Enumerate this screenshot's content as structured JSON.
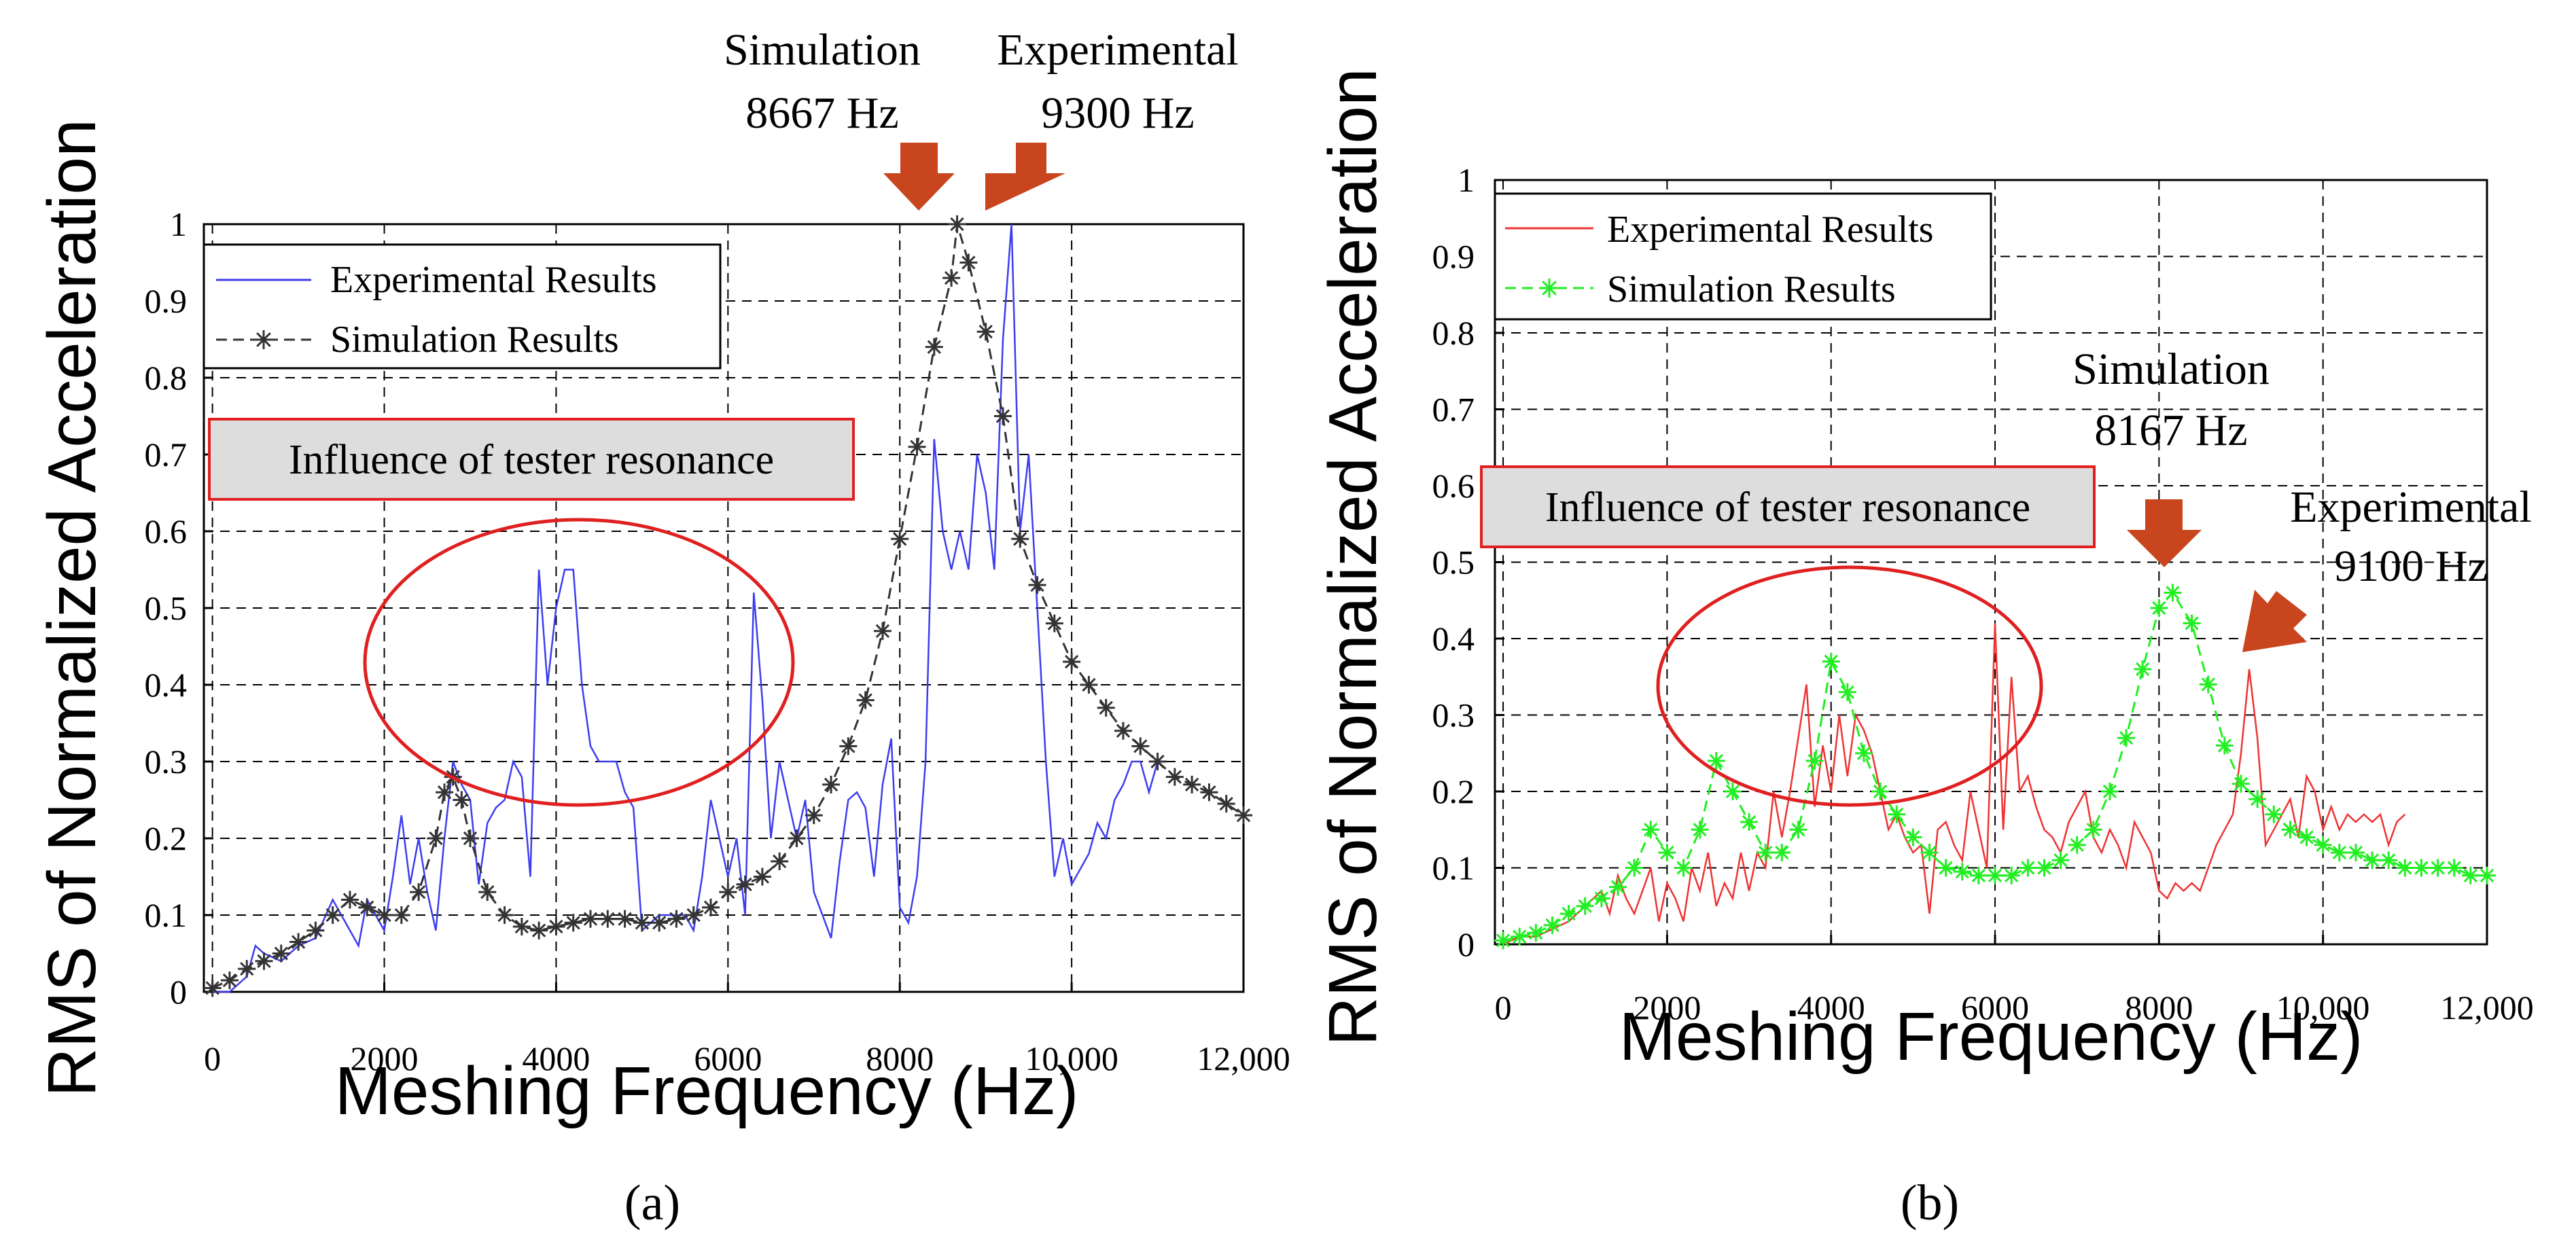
{
  "colors": {
    "exp_a": "#3d3df0",
    "sim_a": "#333333",
    "exp_b": "#ee3333",
    "sim_b": "#22ee22",
    "arrow": "#c8451e",
    "ellipse": "#e02020",
    "box_text": "#e02020",
    "box_border": "#e02020",
    "box_fill": "#dddddd"
  },
  "chart_data": [
    {
      "type": "line",
      "panel": "(a)",
      "xlabel": "Meshing Frequency (Hz)",
      "ylabel": "RMS of Normalized Acceleration",
      "xlim": [
        -100,
        12000
      ],
      "ylim": [
        0,
        1
      ],
      "xticks": [
        0,
        2000,
        4000,
        6000,
        8000,
        10000,
        12000
      ],
      "xtick_labels": [
        "0",
        "2000",
        "4000",
        "6000",
        "8000",
        "10,000",
        "12,000"
      ],
      "yticks": [
        0,
        0.1,
        0.2,
        0.3,
        0.4,
        0.5,
        0.6,
        0.7,
        0.8,
        0.9,
        1
      ],
      "ytick_labels": [
        "0",
        "0.1",
        "0.2",
        "0.3",
        "0.4",
        "0.5",
        "0.6",
        "0.7",
        "0.8",
        "0.9",
        "1"
      ],
      "grid": true,
      "legend": {
        "position": "top-left",
        "entries": [
          "Experimental Results",
          "Simulation Results"
        ]
      },
      "box_text": "Influence of tester resonance",
      "annotations": [
        {
          "line1": "Simulation",
          "line2": "8667 Hz",
          "x": 8667
        },
        {
          "line1": "Experimental",
          "line2": "9300 Hz",
          "x": 9300
        }
      ],
      "series": [
        {
          "name": "Experimental Results",
          "x": [
            0,
            200,
            400,
            500,
            600,
            800,
            1000,
            1200,
            1400,
            1500,
            1600,
            1700,
            1800,
            1900,
            2000,
            2100,
            2200,
            2300,
            2400,
            2500,
            2600,
            2700,
            2800,
            2900,
            3000,
            3100,
            3200,
            3300,
            3400,
            3500,
            3600,
            3700,
            3800,
            3900,
            4000,
            4100,
            4200,
            4300,
            4400,
            4500,
            4600,
            4700,
            4800,
            4900,
            5000,
            5200,
            5400,
            5500,
            5600,
            5700,
            5800,
            5900,
            6000,
            6100,
            6200,
            6300,
            6400,
            6500,
            6600,
            6700,
            6800,
            6900,
            7000,
            7100,
            7200,
            7300,
            7400,
            7500,
            7600,
            7700,
            7800,
            7900,
            8000,
            8100,
            8200,
            8300,
            8400,
            8500,
            8600,
            8700,
            8800,
            8900,
            9000,
            9100,
            9200,
            9300,
            9400,
            9500,
            9600,
            9700,
            9800,
            9900,
            10000,
            10100,
            10200,
            10300,
            10400,
            10500,
            10600,
            10700,
            10800,
            10900,
            11000
          ],
          "values": [
            0,
            0,
            0.02,
            0.06,
            0.05,
            0.04,
            0.06,
            0.07,
            0.12,
            0.1,
            0.08,
            0.06,
            0.12,
            0.1,
            0.08,
            0.15,
            0.23,
            0.14,
            0.2,
            0.13,
            0.08,
            0.2,
            0.3,
            0.27,
            0.25,
            0.14,
            0.22,
            0.24,
            0.25,
            0.3,
            0.28,
            0.15,
            0.55,
            0.4,
            0.5,
            0.55,
            0.55,
            0.4,
            0.32,
            0.3,
            0.3,
            0.3,
            0.26,
            0.24,
            0.08,
            0.1,
            0.1,
            0.1,
            0.08,
            0.15,
            0.25,
            0.2,
            0.15,
            0.2,
            0.1,
            0.52,
            0.38,
            0.2,
            0.3,
            0.25,
            0.2,
            0.25,
            0.13,
            0.1,
            0.07,
            0.17,
            0.25,
            0.26,
            0.24,
            0.15,
            0.27,
            0.33,
            0.11,
            0.09,
            0.15,
            0.3,
            0.72,
            0.6,
            0.55,
            0.6,
            0.55,
            0.7,
            0.65,
            0.55,
            0.85,
            1,
            0.6,
            0.7,
            0.5,
            0.3,
            0.15,
            0.2,
            0.14,
            0.16,
            0.18,
            0.22,
            0.2,
            0.25,
            0.27,
            0.3,
            0.3,
            0.26,
            0.3
          ]
        },
        {
          "name": "Simulation Results",
          "x": [
            0,
            200,
            400,
            600,
            800,
            1000,
            1200,
            1400,
            1600,
            1800,
            2000,
            2200,
            2400,
            2600,
            2700,
            2800,
            2900,
            3000,
            3200,
            3400,
            3600,
            3800,
            4000,
            4200,
            4400,
            4600,
            4800,
            5000,
            5200,
            5400,
            5600,
            5800,
            6000,
            6200,
            6400,
            6600,
            6800,
            7000,
            7200,
            7400,
            7600,
            7800,
            8000,
            8200,
            8400,
            8600,
            8667,
            8800,
            9000,
            9200,
            9400,
            9600,
            9800,
            10000,
            10200,
            10400,
            10600,
            10800,
            11000,
            11200,
            11400,
            11600,
            11800,
            12000
          ],
          "values": [
            0.005,
            0.015,
            0.03,
            0.04,
            0.05,
            0.065,
            0.08,
            0.1,
            0.12,
            0.11,
            0.1,
            0.1,
            0.13,
            0.2,
            0.26,
            0.28,
            0.25,
            0.2,
            0.13,
            0.1,
            0.085,
            0.08,
            0.085,
            0.09,
            0.095,
            0.095,
            0.095,
            0.09,
            0.09,
            0.095,
            0.1,
            0.11,
            0.13,
            0.14,
            0.15,
            0.17,
            0.2,
            0.23,
            0.27,
            0.32,
            0.38,
            0.47,
            0.59,
            0.71,
            0.84,
            0.93,
            1,
            0.95,
            0.86,
            0.75,
            0.59,
            0.53,
            0.48,
            0.43,
            0.4,
            0.37,
            0.34,
            0.32,
            0.3,
            0.28,
            0.27,
            0.26,
            0.245,
            0.23
          ]
        }
      ]
    },
    {
      "type": "line",
      "panel": "(b)",
      "xlabel": "Meshing Frequency (Hz)",
      "ylabel": "RMS of Normalized Acceleration",
      "xlim": [
        -100,
        12000
      ],
      "ylim": [
        0,
        1
      ],
      "xticks": [
        0,
        2000,
        4000,
        6000,
        8000,
        10000,
        12000
      ],
      "xtick_labels": [
        "0",
        "2000",
        "4000",
        "6000",
        "8000",
        "10,000",
        "12,000"
      ],
      "yticks": [
        0,
        0.1,
        0.2,
        0.3,
        0.4,
        0.5,
        0.6,
        0.7,
        0.8,
        0.9,
        1
      ],
      "ytick_labels": [
        "0",
        "0.1",
        "0.2",
        "0.3",
        "0.4",
        "0.5",
        "0.6",
        "0.7",
        "0.8",
        "0.9",
        "1"
      ],
      "grid": true,
      "legend": {
        "position": "top-left",
        "entries": [
          "Experimental Results",
          "Simulation Results"
        ]
      },
      "box_text": "Influence of tester resonance",
      "annotations": [
        {
          "line1": "Simulation",
          "line2": "8167 Hz",
          "x": 8167
        },
        {
          "line1": "Experimental",
          "line2": "9100 Hz",
          "x": 9100
        }
      ],
      "series": [
        {
          "name": "Experimental Results",
          "x": [
            0,
            200,
            400,
            600,
            800,
            1000,
            1200,
            1300,
            1400,
            1500,
            1600,
            1700,
            1800,
            1900,
            2000,
            2100,
            2200,
            2300,
            2400,
            2500,
            2600,
            2700,
            2800,
            2900,
            3000,
            3100,
            3200,
            3300,
            3400,
            3500,
            3600,
            3700,
            3800,
            3900,
            4000,
            4100,
            4200,
            4300,
            4400,
            4500,
            4600,
            4700,
            4800,
            4900,
            5000,
            5100,
            5200,
            5300,
            5400,
            5500,
            5600,
            5700,
            5800,
            5900,
            6000,
            6100,
            6200,
            6300,
            6400,
            6500,
            6600,
            6700,
            6800,
            6900,
            7000,
            7100,
            7200,
            7300,
            7400,
            7500,
            7600,
            7700,
            7800,
            7900,
            8000,
            8100,
            8200,
            8300,
            8400,
            8500,
            8600,
            8700,
            8800,
            8900,
            9000,
            9100,
            9200,
            9300,
            9400,
            9500,
            9600,
            9700,
            9800,
            9900,
            10000,
            10100,
            10200,
            10300,
            10400,
            10500,
            10600,
            10700,
            10800,
            10900,
            11000
          ],
          "values": [
            0,
            0.01,
            0.01,
            0.02,
            0.03,
            0.05,
            0.07,
            0.04,
            0.09,
            0.06,
            0.04,
            0.07,
            0.1,
            0.03,
            0.08,
            0.06,
            0.03,
            0.1,
            0.07,
            0.12,
            0.05,
            0.08,
            0.06,
            0.12,
            0.07,
            0.12,
            0.1,
            0.2,
            0.14,
            0.2,
            0.27,
            0.34,
            0.18,
            0.26,
            0.2,
            0.3,
            0.22,
            0.3,
            0.28,
            0.25,
            0.2,
            0.15,
            0.17,
            0.14,
            0.12,
            0.13,
            0.04,
            0.15,
            0.16,
            0.13,
            0.11,
            0.2,
            0.15,
            0.1,
            0.42,
            0.15,
            0.35,
            0.2,
            0.22,
            0.18,
            0.15,
            0.14,
            0.12,
            0.16,
            0.18,
            0.2,
            0.14,
            0.12,
            0.15,
            0.13,
            0.1,
            0.16,
            0.14,
            0.12,
            0.07,
            0.06,
            0.08,
            0.07,
            0.08,
            0.07,
            0.1,
            0.13,
            0.15,
            0.17,
            0.25,
            0.36,
            0.27,
            0.13,
            0.15,
            0.17,
            0.19,
            0.14,
            0.22,
            0.2,
            0.15,
            0.18,
            0.15,
            0.17,
            0.16,
            0.17,
            0.16,
            0.17,
            0.13,
            0.16,
            0.17
          ]
        },
        {
          "name": "Simulation Results",
          "x": [
            0,
            200,
            400,
            600,
            800,
            1000,
            1200,
            1400,
            1600,
            1800,
            2000,
            2200,
            2400,
            2600,
            2800,
            3000,
            3200,
            3400,
            3600,
            3800,
            4000,
            4200,
            4400,
            4600,
            4800,
            5000,
            5200,
            5400,
            5600,
            5800,
            6000,
            6200,
            6400,
            6600,
            6800,
            7000,
            7200,
            7400,
            7600,
            7800,
            8000,
            8167,
            8400,
            8600,
            8800,
            9000,
            9200,
            9400,
            9600,
            9800,
            10000,
            10200,
            10400,
            10600,
            10800,
            11000,
            11200,
            11400,
            11600,
            11800,
            12000
          ],
          "values": [
            0.005,
            0.01,
            0.015,
            0.025,
            0.04,
            0.05,
            0.06,
            0.075,
            0.1,
            0.15,
            0.12,
            0.1,
            0.15,
            0.24,
            0.2,
            0.16,
            0.12,
            0.12,
            0.15,
            0.24,
            0.37,
            0.33,
            0.25,
            0.2,
            0.17,
            0.14,
            0.12,
            0.1,
            0.095,
            0.09,
            0.09,
            0.09,
            0.1,
            0.1,
            0.11,
            0.13,
            0.15,
            0.2,
            0.27,
            0.36,
            0.44,
            0.46,
            0.42,
            0.34,
            0.26,
            0.21,
            0.19,
            0.17,
            0.15,
            0.14,
            0.13,
            0.12,
            0.12,
            0.11,
            0.11,
            0.1,
            0.1,
            0.1,
            0.1,
            0.09,
            0.09
          ]
        }
      ]
    }
  ]
}
